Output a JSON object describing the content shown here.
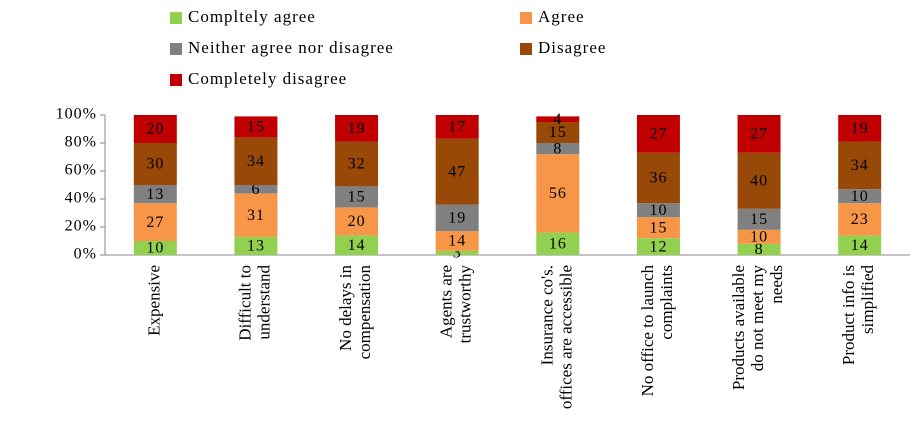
{
  "chart_data": {
    "type": "stacked-bar",
    "categories": [
      "Expensive",
      "Difficult to\nunderstand",
      "No delays in\ncompensation",
      "Agents are\ntrustworthy",
      "Insurance co's.\noffices are accessible",
      "No office to launch\ncomplaints",
      "Products available\ndo not meet my\nneeds",
      "Product info is\nsimplified"
    ],
    "series": [
      {
        "name": "Compltely agree",
        "color": "#92d050",
        "values": [
          10,
          13,
          14,
          3,
          16,
          12,
          8,
          14
        ]
      },
      {
        "name": "Agree",
        "color": "#f79646",
        "values": [
          27,
          31,
          20,
          14,
          56,
          15,
          10,
          23
        ]
      },
      {
        "name": "Neither agree nor disagree",
        "color": "#808080",
        "values": [
          13,
          6,
          15,
          19,
          8,
          10,
          15,
          10
        ]
      },
      {
        "name": "Disagree",
        "color": "#984807",
        "values": [
          30,
          34,
          32,
          47,
          15,
          36,
          40,
          34
        ]
      },
      {
        "name": "Completely disagree",
        "color": "#c00000",
        "values": [
          20,
          15,
          19,
          17,
          4,
          27,
          27,
          19
        ]
      }
    ],
    "ylim": [
      0,
      100
    ],
    "yticks": [
      {
        "value": 0,
        "label": "0%"
      },
      {
        "value": 20,
        "label": "20%"
      },
      {
        "value": 40,
        "label": "40%"
      },
      {
        "value": 60,
        "label": "60%"
      },
      {
        "value": 80,
        "label": "80%"
      },
      {
        "value": 100,
        "label": "100%"
      }
    ],
    "grid": false,
    "legend": "top"
  }
}
